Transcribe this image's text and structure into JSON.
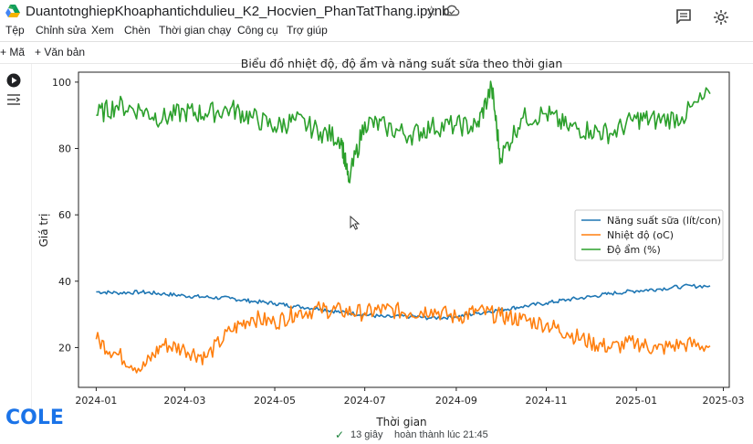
{
  "app": {
    "notebook_title": "DuantotnghiepKhoaphantichdulieu_K2_Hocvien_PhanTatThang.ipynb",
    "menu": [
      "Tệp",
      "Chỉnh sửa",
      "Xem",
      "Chèn",
      "Thời gian chạy",
      "Công cụ",
      "Trợ giúp"
    ],
    "toolbar": {
      "add_code_label": "Mã",
      "add_text_label": "Văn bản"
    }
  },
  "status": {
    "duration": "13 giây",
    "completed": "hoàn thành lúc 21:45",
    "ok_color": "#188038"
  },
  "branding": {
    "logo_text": "COLE"
  },
  "icons": [
    "drive-logo-icon",
    "star-icon",
    "cloud-icon",
    "comment-icon",
    "settings-icon",
    "run-cell-icon",
    "output-menu-icon",
    "cursor-icon"
  ],
  "chart_data": {
    "type": "line",
    "title": "Biểu đồ nhiệt độ, độ ẩm và năng suất sữa theo thời gian",
    "xlabel": "Thời gian",
    "ylabel": "Giá trị",
    "xlim": [
      "2023-12-20",
      "2025-03-05"
    ],
    "ylim": [
      8,
      103
    ],
    "xticks": [
      "2024-01",
      "2024-03",
      "2024-05",
      "2024-07",
      "2024-09",
      "2024-11",
      "2025-01",
      "2025-03"
    ],
    "yticks": [
      20,
      40,
      60,
      80,
      100
    ],
    "legend_position": "center-right",
    "grid": false,
    "series": [
      {
        "name": "Năng suất sữa (lít/con)",
        "color": "#1f77b4",
        "x": [
          "2024-01-01",
          "2024-01-15",
          "2024-02-01",
          "2024-02-15",
          "2024-03-01",
          "2024-03-15",
          "2024-04-01",
          "2024-04-15",
          "2024-05-01",
          "2024-05-15",
          "2024-06-01",
          "2024-06-15",
          "2024-07-01",
          "2024-07-15",
          "2024-08-01",
          "2024-08-15",
          "2024-09-01",
          "2024-09-15",
          "2024-10-01",
          "2024-10-15",
          "2024-11-01",
          "2024-11-15",
          "2024-12-01",
          "2024-12-15",
          "2025-01-01",
          "2025-01-15",
          "2025-02-01",
          "2025-02-20"
        ],
        "y": [
          36.8,
          36.5,
          36.7,
          36.2,
          35.6,
          35.2,
          34.8,
          34.0,
          33.3,
          32.4,
          31.7,
          30.6,
          29.9,
          29.2,
          29.4,
          28.9,
          29.3,
          30.3,
          31.4,
          32.3,
          33.4,
          34.4,
          35.3,
          36.3,
          37.1,
          37.6,
          38.4,
          38.6
        ]
      },
      {
        "name": "Nhiệt độ (oC)",
        "color": "#ff7f0e",
        "x": [
          "2024-01-01",
          "2024-01-15",
          "2024-02-01",
          "2024-02-15",
          "2024-03-01",
          "2024-03-15",
          "2024-04-01",
          "2024-04-15",
          "2024-05-01",
          "2024-05-15",
          "2024-06-01",
          "2024-06-15",
          "2024-07-01",
          "2024-07-15",
          "2024-08-01",
          "2024-08-15",
          "2024-09-01",
          "2024-09-15",
          "2024-10-01",
          "2024-10-15",
          "2024-11-01",
          "2024-11-15",
          "2024-12-01",
          "2024-12-15",
          "2025-01-01",
          "2025-01-15",
          "2025-02-01",
          "2025-02-20"
        ],
        "y": [
          22.5,
          18.0,
          13.5,
          21.0,
          19.5,
          17.0,
          25.0,
          29.0,
          27.5,
          30.5,
          31.5,
          31.0,
          30.5,
          31.5,
          30.5,
          31.5,
          29.0,
          31.0,
          29.5,
          28.5,
          27.0,
          24.5,
          21.5,
          20.0,
          21.5,
          19.5,
          21.0,
          20.5
        ]
      },
      {
        "name": "Độ ẩm (%)",
        "color": "#2ca02c",
        "x": [
          "2024-01-01",
          "2024-01-15",
          "2024-02-01",
          "2024-02-15",
          "2024-03-01",
          "2024-03-15",
          "2024-04-01",
          "2024-04-15",
          "2024-05-01",
          "2024-05-15",
          "2024-06-01",
          "2024-06-15",
          "2024-06-20",
          "2024-07-01",
          "2024-07-15",
          "2024-08-01",
          "2024-08-15",
          "2024-09-01",
          "2024-09-15",
          "2024-09-25",
          "2024-10-01",
          "2024-10-15",
          "2024-11-01",
          "2024-11-15",
          "2024-12-01",
          "2024-12-15",
          "2025-01-01",
          "2025-01-15",
          "2025-02-01",
          "2025-02-20"
        ],
        "y": [
          90.0,
          93.0,
          91.5,
          89.0,
          91.0,
          90.5,
          92.0,
          89.5,
          86.5,
          88.5,
          85.0,
          83.0,
          70.0,
          88.0,
          86.5,
          84.0,
          86.5,
          87.0,
          86.5,
          98.5,
          77.0,
          89.0,
          90.5,
          86.5,
          85.5,
          84.5,
          89.0,
          88.5,
          89.5,
          96.5
        ]
      }
    ]
  }
}
